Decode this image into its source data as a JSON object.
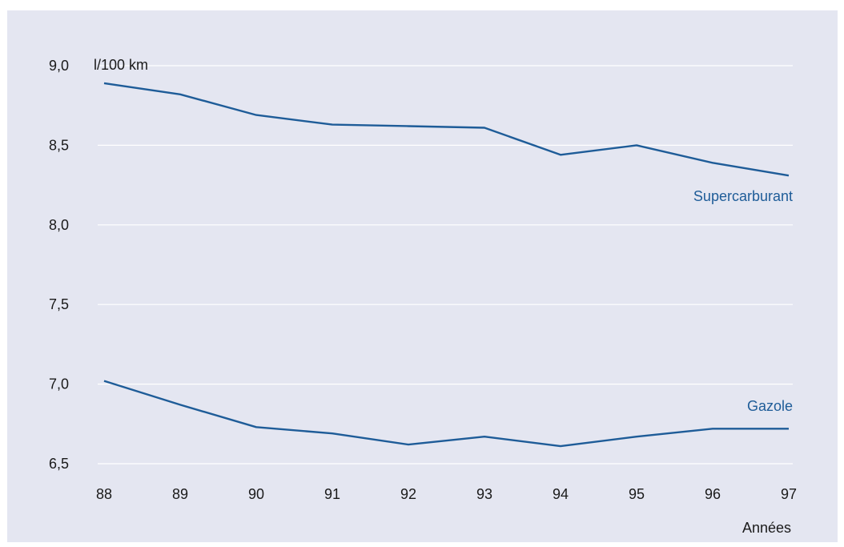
{
  "chart_data": {
    "type": "line",
    "title": "",
    "xlabel": "Années",
    "ylabel": "l/100 km",
    "categories": [
      "88",
      "89",
      "90",
      "91",
      "92",
      "93",
      "94",
      "95",
      "96",
      "97"
    ],
    "y_ticks": [
      "9,0",
      "8,5",
      "8,0",
      "7,5",
      "7,0",
      "6,5"
    ],
    "y_tick_values": [
      9.0,
      8.5,
      8.0,
      7.5,
      7.0,
      6.5
    ],
    "ylim": [
      6.5,
      9.0
    ],
    "grid": "horizontal",
    "series": [
      {
        "name": "Supercarburant",
        "values": [
          8.89,
          8.82,
          8.69,
          8.63,
          8.62,
          8.61,
          8.44,
          8.5,
          8.39,
          8.31
        ]
      },
      {
        "name": "Gazole",
        "values": [
          7.02,
          6.87,
          6.73,
          6.69,
          6.62,
          6.67,
          6.61,
          6.67,
          6.72,
          6.72
        ]
      }
    ],
    "colors": {
      "background": "#e4e6f1",
      "line": "#1e5c98",
      "label": "#1e5c98",
      "grid": "#ffffff"
    }
  }
}
